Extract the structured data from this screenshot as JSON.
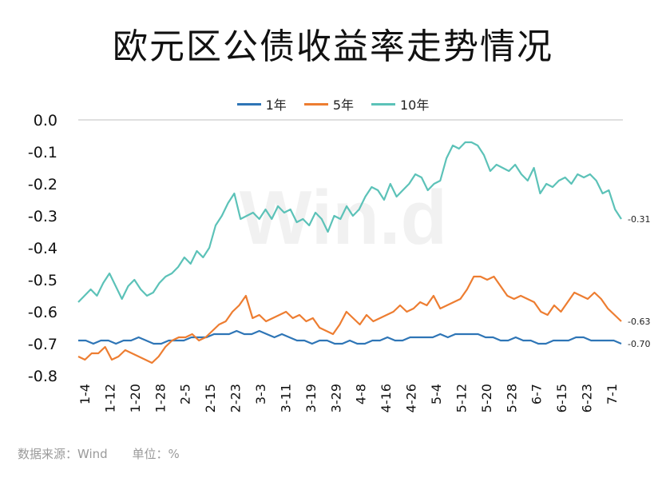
{
  "title": "欧元区公债收益率走势情况",
  "footer": {
    "source": "数据来源：Wind",
    "unit": "单位：%"
  },
  "watermark": "Win.d",
  "chart_data": {
    "type": "line",
    "title": "欧元区公债收益率走势情况",
    "ylim": [
      -0.8,
      0.0
    ],
    "yticks": [
      "0.0",
      "-0.1",
      "-0.2",
      "-0.3",
      "-0.4",
      "-0.5",
      "-0.6",
      "-0.7",
      "-0.8"
    ],
    "ytick_values": [
      0.0,
      -0.1,
      -0.2,
      -0.3,
      -0.4,
      -0.5,
      -0.6,
      -0.7,
      -0.8
    ],
    "xticks": [
      "1-4",
      "1-12",
      "1-20",
      "1-28",
      "2-5",
      "2-15",
      "2-23",
      "3-3",
      "3-11",
      "3-19",
      "3-29",
      "4-8",
      "4-16",
      "4-26",
      "5-4",
      "5-12",
      "5-20",
      "5-28",
      "6-7",
      "6-15",
      "6-23",
      "7-1"
    ],
    "grid": false,
    "legend_position": "top",
    "series": [
      {
        "name": "1年",
        "color": "#2e75b6",
        "end_label": "-0.70",
        "values": [
          -0.69,
          -0.69,
          -0.7,
          -0.69,
          -0.69,
          -0.7,
          -0.69,
          -0.69,
          -0.68,
          -0.69,
          -0.7,
          -0.7,
          -0.69,
          -0.69,
          -0.69,
          -0.68,
          -0.68,
          -0.68,
          -0.67,
          -0.67,
          -0.67,
          -0.66,
          -0.67,
          -0.67,
          -0.66,
          -0.67,
          -0.68,
          -0.67,
          -0.68,
          -0.69,
          -0.69,
          -0.7,
          -0.69,
          -0.69,
          -0.7,
          -0.7,
          -0.69,
          -0.7,
          -0.7,
          -0.69,
          -0.69,
          -0.68,
          -0.69,
          -0.69,
          -0.68,
          -0.68,
          -0.68,
          -0.68,
          -0.67,
          -0.68,
          -0.67,
          -0.67,
          -0.67,
          -0.67,
          -0.68,
          -0.68,
          -0.69,
          -0.69,
          -0.68,
          -0.69,
          -0.69,
          -0.7,
          -0.7,
          -0.69,
          -0.69,
          -0.69,
          -0.68,
          -0.68,
          -0.69,
          -0.69,
          -0.69,
          -0.69,
          -0.7
        ]
      },
      {
        "name": "5年",
        "color": "#ed7d31",
        "end_label": "-0.63",
        "values": [
          -0.74,
          -0.75,
          -0.73,
          -0.73,
          -0.71,
          -0.75,
          -0.74,
          -0.72,
          -0.73,
          -0.74,
          -0.75,
          -0.76,
          -0.74,
          -0.71,
          -0.69,
          -0.68,
          -0.68,
          -0.67,
          -0.69,
          -0.68,
          -0.66,
          -0.64,
          -0.63,
          -0.6,
          -0.58,
          -0.55,
          -0.62,
          -0.61,
          -0.63,
          -0.62,
          -0.61,
          -0.6,
          -0.62,
          -0.61,
          -0.63,
          -0.62,
          -0.65,
          -0.66,
          -0.67,
          -0.64,
          -0.6,
          -0.62,
          -0.64,
          -0.61,
          -0.63,
          -0.62,
          -0.61,
          -0.6,
          -0.58,
          -0.6,
          -0.59,
          -0.57,
          -0.58,
          -0.55,
          -0.59,
          -0.58,
          -0.57,
          -0.56,
          -0.53,
          -0.49,
          -0.49,
          -0.5,
          -0.49,
          -0.52,
          -0.55,
          -0.56,
          -0.55,
          -0.56,
          -0.57,
          -0.6,
          -0.61,
          -0.58,
          -0.6,
          -0.57,
          -0.54,
          -0.55,
          -0.56,
          -0.54,
          -0.56,
          -0.59,
          -0.61,
          -0.63
        ]
      },
      {
        "name": "10年",
        "color": "#5cc2b8",
        "end_label": "-0.31",
        "values": [
          -0.57,
          -0.55,
          -0.53,
          -0.55,
          -0.51,
          -0.48,
          -0.52,
          -0.56,
          -0.52,
          -0.5,
          -0.53,
          -0.55,
          -0.54,
          -0.51,
          -0.49,
          -0.48,
          -0.46,
          -0.43,
          -0.45,
          -0.41,
          -0.43,
          -0.4,
          -0.33,
          -0.3,
          -0.26,
          -0.23,
          -0.31,
          -0.3,
          -0.29,
          -0.31,
          -0.28,
          -0.31,
          -0.27,
          -0.29,
          -0.28,
          -0.32,
          -0.31,
          -0.33,
          -0.29,
          -0.31,
          -0.35,
          -0.3,
          -0.31,
          -0.27,
          -0.3,
          -0.28,
          -0.24,
          -0.21,
          -0.22,
          -0.25,
          -0.2,
          -0.24,
          -0.22,
          -0.2,
          -0.17,
          -0.18,
          -0.22,
          -0.2,
          -0.19,
          -0.12,
          -0.08,
          -0.09,
          -0.07,
          -0.07,
          -0.08,
          -0.11,
          -0.16,
          -0.14,
          -0.15,
          -0.16,
          -0.14,
          -0.17,
          -0.19,
          -0.15,
          -0.23,
          -0.2,
          -0.21,
          -0.19,
          -0.18,
          -0.2,
          -0.17,
          -0.18,
          -0.17,
          -0.19,
          -0.23,
          -0.22,
          -0.28,
          -0.31
        ]
      }
    ]
  }
}
